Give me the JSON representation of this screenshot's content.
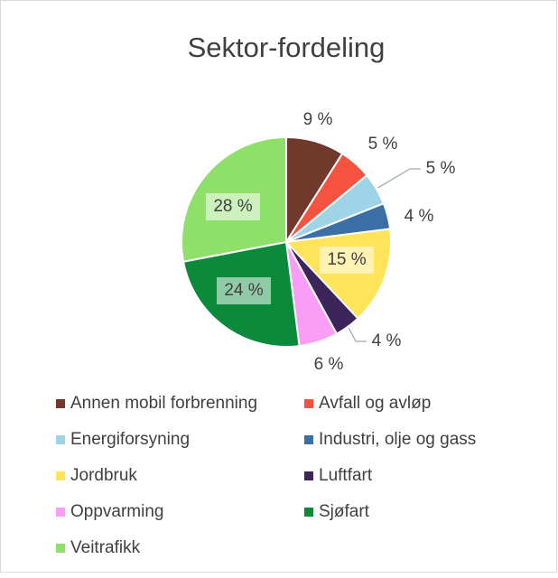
{
  "chart_data": {
    "type": "pie",
    "title": "Sektor-fordeling",
    "categories": [
      "Annen mobil forbrenning",
      "Avfall og avløp",
      "Energiforsyning",
      "Industri, olje og gass",
      "Jordbruk",
      "Luftfart",
      "Oppvarming",
      "Sjøfart",
      "Veitrafikk"
    ],
    "values": [
      9,
      5,
      5,
      4,
      15,
      4,
      6,
      24,
      28
    ],
    "value_labels": [
      "9 %",
      "5 %",
      "5 %",
      "4 %",
      "15 %",
      "4 %",
      "6 %",
      "24 %",
      "28 %"
    ],
    "colors": [
      "#70392c",
      "#f5533f",
      "#9fd4e7",
      "#3b6fa6",
      "#ffe358",
      "#3b2559",
      "#f99df6",
      "#0c8a3b",
      "#8fe06b"
    ],
    "legend": "bottom"
  }
}
